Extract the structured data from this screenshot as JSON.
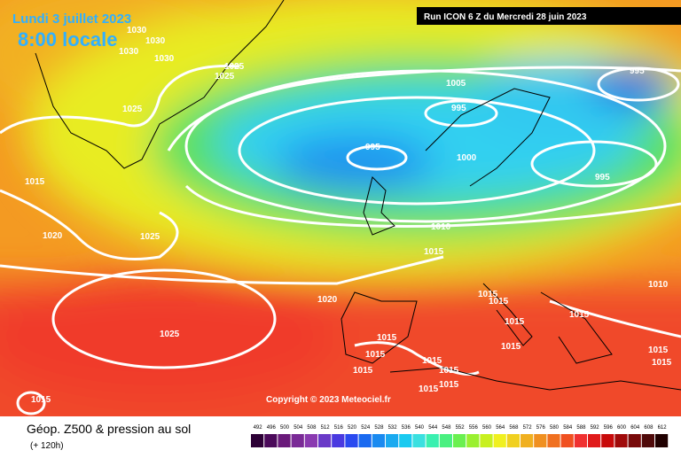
{
  "header": {
    "date": "Lundi 3 juillet 2023",
    "time": "8:00 locale",
    "run": "Run ICON 6 Z du Mercredi 28 juin 2023"
  },
  "isobar_labels": [
    "1030",
    "1030",
    "1030",
    "1030",
    "1025",
    "1025",
    "1025",
    "995",
    "1005",
    "995",
    "995",
    "1000",
    "995",
    "1015",
    "1020",
    "1025",
    "1010",
    "1015",
    "1010",
    "1015",
    "1015",
    "1015",
    "1015",
    "1020",
    "1025",
    "1015",
    "1015",
    "1015",
    "1015",
    "1015",
    "1015",
    "1015",
    "1015",
    "1015",
    "1015",
    "1015"
  ],
  "copyright": "Copyright © 2023 Meteociel.fr",
  "caption": {
    "title": "Géop. Z500 & pression au sol",
    "lead": "(+ 120h)"
  },
  "scale": {
    "labels": [
      492,
      496,
      500,
      504,
      508,
      512,
      516,
      520,
      524,
      528,
      532,
      536,
      540,
      544,
      548,
      552,
      556,
      560,
      564,
      568,
      572,
      576,
      580,
      584,
      588,
      592,
      596,
      600,
      604,
      608,
      612
    ],
    "colors": [
      "#2d0036",
      "#4b0a5a",
      "#6a1a7a",
      "#7a2a96",
      "#8a3ab0",
      "#6a3ac8",
      "#4a3ae0",
      "#2a4af0",
      "#1a6af0",
      "#1a8af0",
      "#1aaaf0",
      "#1acaf0",
      "#3ae0e0",
      "#3af0b0",
      "#4af080",
      "#6af050",
      "#9af030",
      "#c8f020",
      "#f0f020",
      "#f0d020",
      "#f0b020",
      "#f09020",
      "#f07020",
      "#f05020",
      "#f03030",
      "#e01a1a",
      "#c80a0a",
      "#a00a0a",
      "#780a0a",
      "#500a0a",
      "#200000"
    ]
  }
}
